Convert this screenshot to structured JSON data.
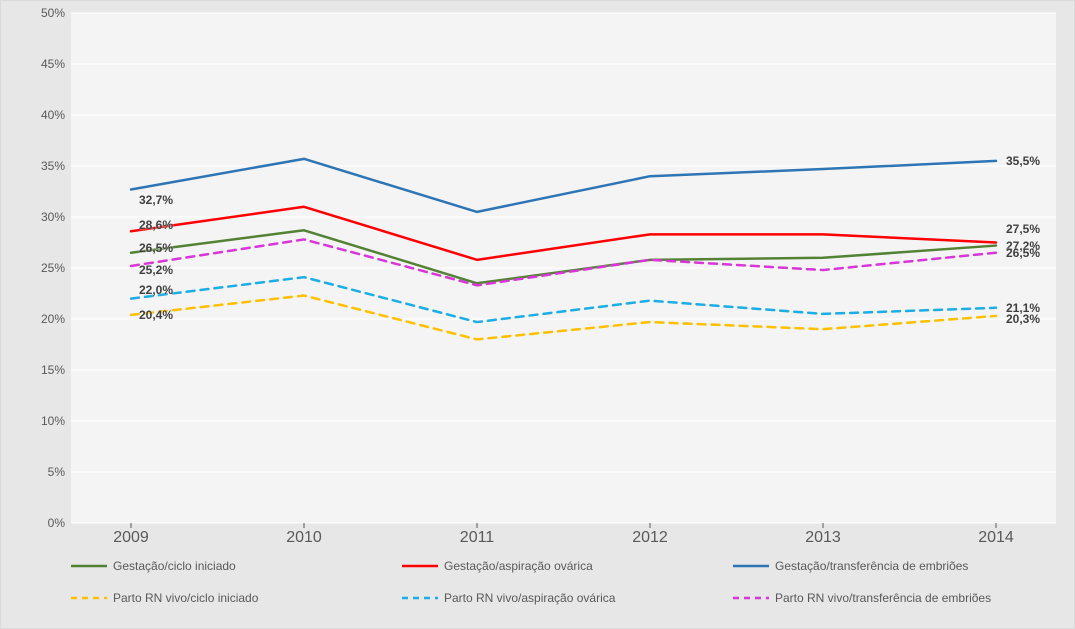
{
  "chart": {
    "type": "line",
    "background_color": "#e7e7e7",
    "plot_background_color": "#f4f4f4",
    "grid_color": "#ffffff",
    "border_color": "#d9d9d9",
    "axis_font_color": "#595959",
    "x_categories": [
      "2009",
      "2010",
      "2011",
      "2012",
      "2013",
      "2014"
    ],
    "xlim": [
      2009,
      2014
    ],
    "ylim": [
      0,
      50
    ],
    "ytick_step": 5,
    "ytick_labels": [
      "0%",
      "5%",
      "10%",
      "15%",
      "20%",
      "25%",
      "30%",
      "35%",
      "40%",
      "45%",
      "50%"
    ],
    "y_tick_fontsize": 12,
    "x_tick_fontsize": 16,
    "line_width": 2.5,
    "dash_pattern": "8,6",
    "series": [
      {
        "key": "gest_ciclo",
        "label": "Gestação/ciclo iniciado",
        "color": "#548235",
        "dashed": false,
        "values": [
          26.5,
          28.7,
          23.5,
          25.8,
          26.0,
          27.2
        ],
        "label_left": "26,5%",
        "label_right": "27,2%",
        "left_label_y_override": 27.0
      },
      {
        "key": "gest_asp",
        "label": "Gestação/aspiração ovárica",
        "color": "#ff0000",
        "dashed": false,
        "values": [
          28.6,
          31.0,
          25.8,
          28.3,
          28.3,
          27.5
        ],
        "label_left": "28,6%",
        "label_right": "27,5%",
        "left_label_y_override": 29.2,
        "right_label_y_override": 28.8
      },
      {
        "key": "gest_transf",
        "label": "Gestação/transferência de embriões",
        "color": "#2e75b6",
        "dashed": false,
        "values": [
          32.7,
          35.7,
          30.5,
          34.0,
          34.7,
          35.5
        ],
        "label_left": "32,7%",
        "label_right": "35,5%",
        "left_label_y_override": 31.7
      },
      {
        "key": "parto_ciclo",
        "label": "Parto RN vivo/ciclo iniciado",
        "color": "#ffc000",
        "dashed": true,
        "values": [
          20.4,
          22.3,
          18.0,
          19.7,
          19.0,
          20.3
        ],
        "label_left": "20,4%",
        "label_right": "20,3%",
        "left_label_y_override": 20.4,
        "right_label_y_override": 20.0
      },
      {
        "key": "parto_asp",
        "label": "Parto RN vivo/aspiração ovárica",
        "color": "#1cade4",
        "dashed": true,
        "values": [
          22.0,
          24.1,
          19.7,
          21.8,
          20.5,
          21.1
        ],
        "label_left": "22,0%",
        "label_right": "21,1%",
        "left_label_y_override": 22.8
      },
      {
        "key": "parto_transf",
        "label": "Parto RN vivo/transferência de embriões",
        "color": "#d936d9",
        "dashed": true,
        "values": [
          25.2,
          27.8,
          23.3,
          25.8,
          24.8,
          26.5
        ],
        "label_left": "25,2%",
        "label_right": "26,5%",
        "left_label_y_override": 24.8
      }
    ],
    "data_label_fontsize": 12,
    "data_label_color": "#404040",
    "data_label_fontweight": "bold",
    "legend_fontsize": 12,
    "legend_font_color": "#595959"
  }
}
